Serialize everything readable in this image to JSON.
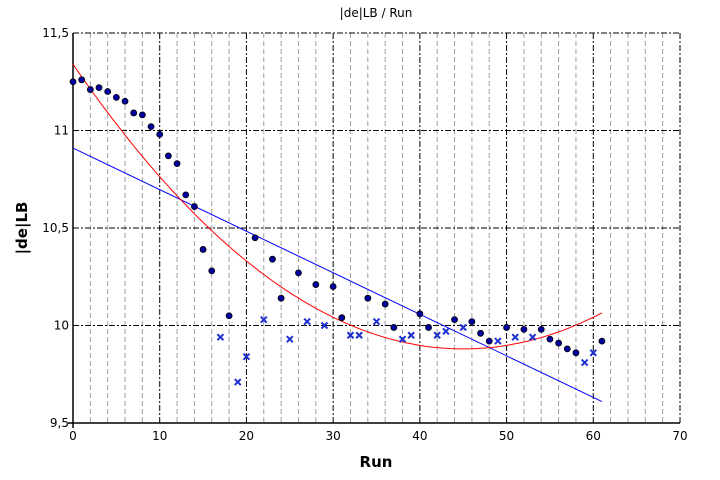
{
  "chart_data": {
    "type": "scatter",
    "title": "|de|LB / Run",
    "xlabel": "Run",
    "ylabel": "|de|LB",
    "xlim": [
      0,
      70
    ],
    "ylim": [
      9.5,
      11.5
    ],
    "xticks": [
      "0",
      "10",
      "20",
      "30",
      "40",
      "50",
      "60",
      "70"
    ],
    "yticks": [
      "9,5",
      "10",
      "10,5",
      "11",
      "11,5"
    ],
    "grid": true,
    "colors": {
      "points": "#0000a0",
      "crosses": "#2030d0",
      "linear_fit": "#0000ff",
      "quadratic_fit": "#ff0000"
    },
    "series": [
      {
        "marker": "circle",
        "x": [
          0,
          1,
          2,
          3,
          4,
          5,
          6,
          7,
          8,
          9,
          10,
          11,
          12,
          13,
          14,
          15,
          16,
          18,
          21,
          23,
          24,
          26,
          28,
          30,
          31,
          34,
          36,
          37,
          40,
          41,
          44,
          46,
          47,
          48,
          50,
          52,
          54,
          55,
          56,
          57,
          58,
          61
        ],
        "y": [
          11.25,
          11.26,
          11.21,
          11.22,
          11.2,
          11.17,
          11.15,
          11.09,
          11.08,
          11.02,
          10.98,
          10.87,
          10.83,
          10.67,
          10.61,
          10.39,
          10.28,
          10.05,
          10.45,
          10.34,
          10.14,
          10.27,
          10.21,
          10.2,
          10.04,
          10.14,
          10.11,
          9.99,
          10.06,
          9.99,
          10.03,
          10.02,
          9.96,
          9.92,
          9.99,
          9.98,
          9.98,
          9.93,
          9.91,
          9.88,
          9.86,
          9.92
        ]
      },
      {
        "marker": "cross",
        "x": [
          17,
          19,
          20,
          22,
          25,
          27,
          29,
          32,
          33,
          35,
          38,
          39,
          42,
          43,
          45,
          49,
          51,
          53,
          59,
          60
        ],
        "y": [
          9.94,
          9.71,
          9.84,
          10.03,
          9.93,
          10.02,
          10.0,
          9.95,
          9.95,
          10.02,
          9.93,
          9.95,
          9.95,
          9.97,
          9.99,
          9.92,
          9.94,
          9.94,
          9.81,
          9.86
        ]
      }
    ],
    "fits": [
      {
        "type": "linear",
        "x": [
          0,
          61
        ],
        "y": [
          10.91,
          9.61
        ]
      },
      {
        "type": "quadratic",
        "vertex_x": 45,
        "vertex_y": 9.88,
        "a": 0.000721,
        "x_range": [
          0,
          61
        ]
      }
    ]
  }
}
